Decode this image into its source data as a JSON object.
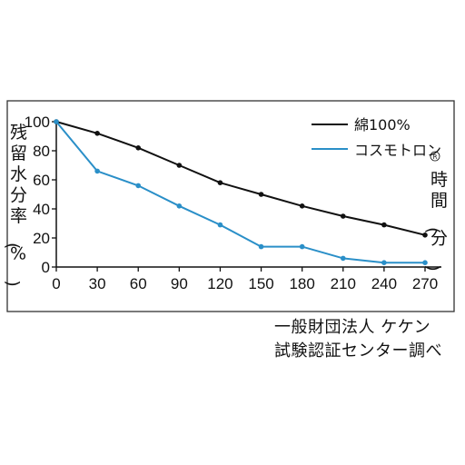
{
  "chart_data": {
    "type": "line",
    "x": [
      0,
      30,
      60,
      90,
      120,
      150,
      180,
      210,
      240,
      270
    ],
    "xlim": [
      0,
      270
    ],
    "ylim": [
      0,
      100
    ],
    "yticks": [
      0,
      20,
      40,
      60,
      80,
      100
    ],
    "ylabel": "残留水分率(%)",
    "xlabel": "時間(分)",
    "grid": false,
    "legend_position": "top-right",
    "series": [
      {
        "name": "綿100%",
        "color": "#111111",
        "values": [
          100,
          92,
          82,
          70,
          58,
          50,
          42,
          35,
          29,
          22
        ]
      },
      {
        "name": "コスモトロン",
        "name_mark": "R",
        "color": "#2a8fc8",
        "values": [
          100,
          66,
          56,
          42,
          29,
          14,
          14,
          6,
          3,
          3
        ]
      }
    ]
  },
  "source": {
    "line1": "一般財団法人 ケケン",
    "line2": "試験認証センター調べ"
  }
}
